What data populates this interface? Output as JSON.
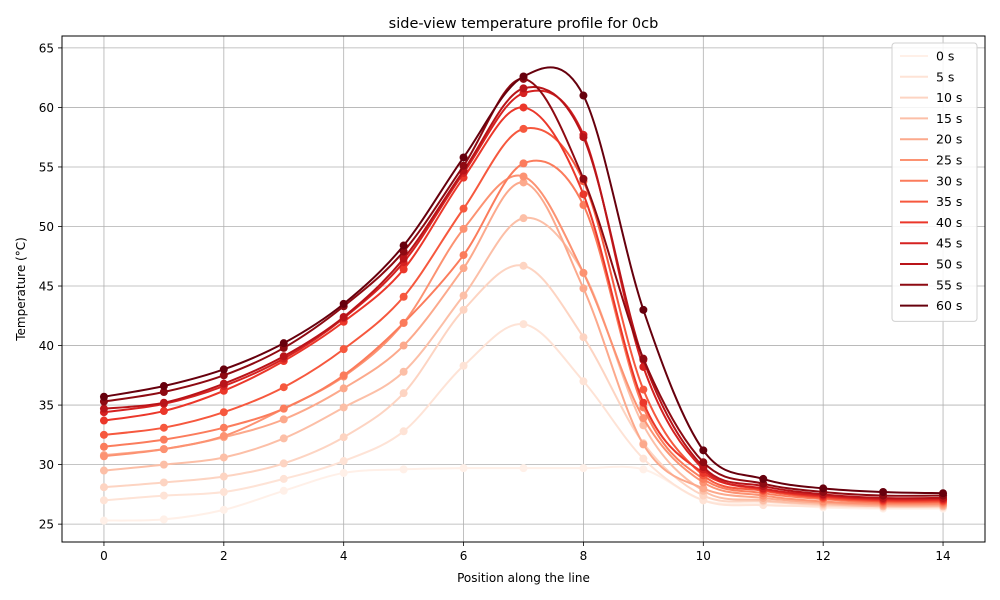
{
  "chart_data": {
    "type": "line",
    "title": "side-view temperature profile for 0cb",
    "xlabel": "Position along the line",
    "ylabel": "Temperature (°C)",
    "xlim": [
      -0.7,
      14.7
    ],
    "ylim": [
      23.5,
      66.0
    ],
    "xticks": [
      0,
      2,
      4,
      6,
      8,
      10,
      12,
      14
    ],
    "yticks": [
      25,
      30,
      35,
      40,
      45,
      50,
      55,
      60,
      65
    ],
    "grid": true,
    "legend": "top-right",
    "x": [
      0,
      1,
      2,
      3,
      4,
      5,
      6,
      7,
      8,
      9,
      10,
      11,
      12,
      13,
      14
    ],
    "series": [
      {
        "name": "0 s",
        "color": "#fff0e8",
        "values": [
          25.3,
          25.4,
          26.2,
          27.8,
          29.3,
          29.6,
          29.7,
          29.7,
          29.7,
          29.6,
          27.0,
          26.7,
          26.4,
          26.3,
          26.3
        ]
      },
      {
        "name": "5 s",
        "color": "#fee3d6",
        "values": [
          27.0,
          27.4,
          27.7,
          28.8,
          30.3,
          32.8,
          38.3,
          41.8,
          37.0,
          30.5,
          27.0,
          26.6,
          26.5,
          26.4,
          26.4
        ]
      },
      {
        "name": "10 s",
        "color": "#fdd4c2",
        "values": [
          28.1,
          28.5,
          29.0,
          30.1,
          32.3,
          36.0,
          43.0,
          46.7,
          40.7,
          31.8,
          27.4,
          26.9,
          26.6,
          26.5,
          26.5
        ]
      },
      {
        "name": "15 s",
        "color": "#fcbfa7",
        "values": [
          29.5,
          30.0,
          30.6,
          32.2,
          34.8,
          37.8,
          44.2,
          50.7,
          46.1,
          33.3,
          27.8,
          27.0,
          26.7,
          26.5,
          26.5
        ]
      },
      {
        "name": "20 s",
        "color": "#fca98c",
        "values": [
          30.8,
          31.3,
          32.3,
          33.8,
          36.4,
          40.0,
          46.5,
          53.7,
          44.8,
          31.7,
          28.0,
          27.2,
          26.8,
          26.6,
          26.6
        ]
      },
      {
        "name": "25 s",
        "color": "#fc9272",
        "values": [
          30.7,
          31.3,
          32.4,
          34.7,
          37.4,
          41.9,
          49.8,
          54.2,
          46.1,
          33.9,
          28.5,
          27.4,
          26.9,
          26.7,
          26.7
        ]
      },
      {
        "name": "30 s",
        "color": "#fb7c5c",
        "values": [
          31.5,
          32.1,
          33.1,
          34.7,
          37.5,
          41.9,
          47.6,
          55.3,
          51.8,
          34.8,
          28.8,
          27.6,
          27.1,
          26.8,
          26.8
        ]
      },
      {
        "name": "35 s",
        "color": "#f6583e",
        "values": [
          32.5,
          33.1,
          34.4,
          36.5,
          39.7,
          44.1,
          51.5,
          58.2,
          53.8,
          36.3,
          29.1,
          27.8,
          27.2,
          26.9,
          26.9
        ]
      },
      {
        "name": "40 s",
        "color": "#eb372a",
        "values": [
          33.7,
          34.5,
          36.2,
          38.7,
          42.0,
          46.4,
          54.1,
          60.0,
          52.7,
          35.2,
          29.3,
          27.9,
          27.3,
          27.0,
          27.0
        ]
      },
      {
        "name": "45 s",
        "color": "#d52221",
        "values": [
          34.4,
          35.1,
          36.6,
          38.9,
          42.3,
          47.0,
          54.5,
          61.2,
          57.7,
          38.2,
          29.6,
          28.0,
          27.4,
          27.1,
          27.1
        ]
      },
      {
        "name": "50 s",
        "color": "#b91419",
        "values": [
          34.7,
          35.2,
          36.8,
          39.1,
          42.4,
          47.3,
          54.7,
          61.6,
          57.5,
          38.8,
          29.8,
          28.2,
          27.5,
          27.2,
          27.2
        ]
      },
      {
        "name": "55 s",
        "color": "#8e0a12",
        "values": [
          35.3,
          36.1,
          37.5,
          39.8,
          43.3,
          47.9,
          55.1,
          62.4,
          54.0,
          38.9,
          30.2,
          28.4,
          27.7,
          27.4,
          27.4
        ]
      },
      {
        "name": "60 s",
        "color": "#67000d",
        "values": [
          35.7,
          36.6,
          38.0,
          40.2,
          43.5,
          48.4,
          55.8,
          62.6,
          61.0,
          43.0,
          31.2,
          28.8,
          28.0,
          27.7,
          27.6
        ]
      }
    ]
  }
}
